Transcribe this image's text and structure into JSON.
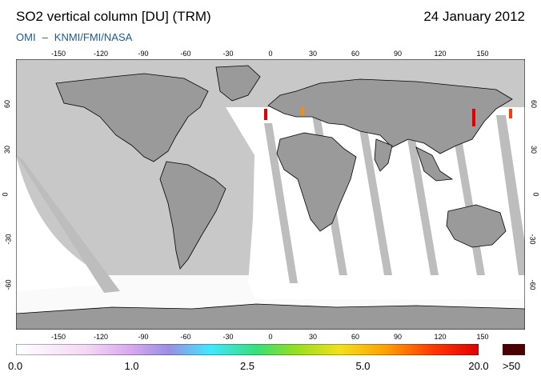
{
  "header": {
    "title": "SO2 vertical column [DU] (TRM)",
    "date": "24 January 2012",
    "credit_left": "OMI",
    "credit_dash": "–",
    "credit_right": "KNMI/FMI/NASA"
  },
  "map": {
    "lon_labels": [
      "-150",
      "-120",
      "-90",
      "-60",
      "-30",
      "0",
      "30",
      "60",
      "90",
      "120",
      "150"
    ],
    "lon_values": [
      -150,
      -120,
      -90,
      -60,
      -30,
      0,
      30,
      60,
      90,
      120,
      150
    ],
    "lat_labels": [
      "60",
      "30",
      "0",
      "-30",
      "-60"
    ],
    "lat_values": [
      60,
      30,
      0,
      -30,
      -60
    ],
    "lon_range": [
      -180,
      180
    ],
    "lat_range": [
      -90,
      90
    ],
    "colors": {
      "ocean": "#c8c8c8",
      "land": "#9a9a9a",
      "swath": "#ffffff",
      "gap": "#bdbdbd"
    }
  },
  "colorbar": {
    "labels": [
      "0.0",
      "1.0",
      "2.5",
      "5.0",
      "20.0"
    ],
    "over_label": ">50",
    "colors": [
      "#ffffff",
      "#f4d8f4",
      "#d7a8ee",
      "#9a8ee6",
      "#3fe8ff",
      "#35e07b",
      "#8fe01f",
      "#f2e01a",
      "#ffa000",
      "#ff3a00",
      "#e00000"
    ],
    "over_color": "#4a0000"
  }
}
